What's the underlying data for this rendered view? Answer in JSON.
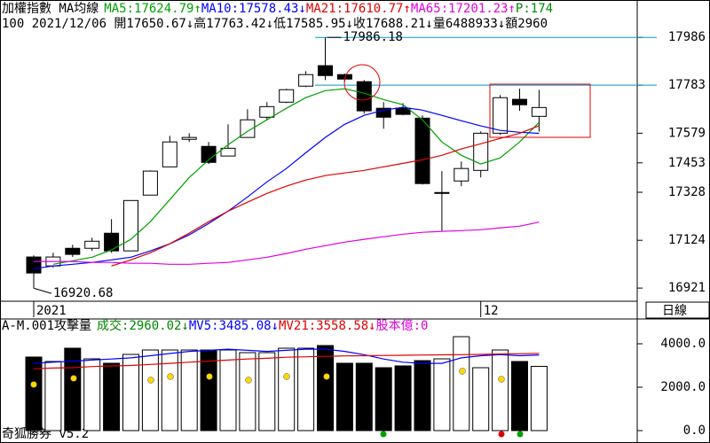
{
  "header": {
    "row1_tail": "P:174",
    "row2": "100 2021/12/06 開17650.67↓高17763.42↓低17585.95↓收17688.21↓量6488933↓額2960",
    "period": "日線",
    "footer": "奇狐勝券 v5.2",
    "capital": "股本億:0"
  },
  "chart_data": [
    {
      "type": "candlestick",
      "title": "加權指數 MA均線",
      "categories": [
        "2021",
        null,
        null,
        null,
        null,
        null,
        null,
        null,
        null,
        null,
        null,
        null,
        null,
        null,
        null,
        null,
        null,
        null,
        null,
        null,
        null,
        null,
        null,
        "12",
        null,
        null,
        null
      ],
      "open": [
        17053,
        17015,
        17090,
        17090,
        17154,
        17079,
        17316,
        17436,
        17553,
        17523,
        17482,
        17561,
        17647,
        17711,
        17779,
        17866,
        17828,
        17798,
        17685,
        17685,
        17643,
        17327,
        17376,
        17421,
        17579,
        17723,
        17650.67
      ],
      "high": [
        17060,
        17071,
        17105,
        17135,
        17214,
        17293,
        17421,
        17568,
        17579,
        17542,
        17617,
        17681,
        17711,
        17768,
        17843,
        17986.18,
        17832,
        17805,
        17711,
        17707,
        17655,
        17418,
        17459,
        17587,
        17741,
        17768,
        17763.42
      ],
      "low": [
        16920.68,
        17008,
        17053,
        17079,
        17071,
        17079,
        17316,
        17436,
        17542,
        17448,
        17482,
        17561,
        17636,
        17707,
        17775,
        17805,
        17798,
        17662,
        17598,
        17655,
        17361,
        17165,
        17354,
        17391,
        17572,
        17674,
        17585.95
      ],
      "close": [
        16985,
        17053,
        17064,
        17120,
        17079,
        17293,
        17418,
        17542,
        17561,
        17455,
        17515,
        17636,
        17692,
        17764,
        17828,
        17824,
        17809,
        17674,
        17647,
        17659,
        17365,
        17327,
        17429,
        17579,
        17730,
        17700,
        17688.21
      ],
      "series": [
        {
          "name": "MA5:17624.79↑",
          "color": "#00a000",
          "values": [
            null,
            17022,
            17037,
            17052,
            17083,
            17128,
            17203,
            17297,
            17391,
            17466,
            17530,
            17587,
            17636,
            17685,
            17730,
            17760,
            17768,
            17749,
            17722,
            17700,
            17636,
            17542,
            17485,
            17448,
            17474,
            17542,
            17624.79
          ]
        },
        {
          "name": "MA10:17578.43↓",
          "color": "#0000ff",
          "values": [
            17003,
            17015,
            17022,
            17030,
            17041,
            17052,
            17079,
            17109,
            17147,
            17195,
            17248,
            17308,
            17372,
            17429,
            17496,
            17561,
            17617,
            17655,
            17677,
            17689,
            17677,
            17655,
            17632,
            17610,
            17591,
            17583,
            17578.43
          ]
        },
        {
          "name": "MA21:17610.77↑",
          "color": "#e00000",
          "values": [
            null,
            null,
            null,
            null,
            17015,
            17041,
            17071,
            17109,
            17154,
            17203,
            17248,
            17286,
            17323,
            17354,
            17380,
            17399,
            17410,
            17421,
            17436,
            17451,
            17466,
            17485,
            17512,
            17534,
            17557,
            17579,
            17610.77
          ]
        },
        {
          "name": "MA65:17201.23↑",
          "color": "#e000e0",
          "values": [
            17034,
            17034,
            17034,
            17030,
            17030,
            17026,
            17026,
            17022,
            17022,
            17026,
            17030,
            17041,
            17052,
            17068,
            17086,
            17101,
            17116,
            17128,
            17139,
            17150,
            17158,
            17162,
            17165,
            17169,
            17177,
            17184,
            17201.23
          ]
        }
      ],
      "hlines": [
        17986,
        17783
      ],
      "hline_color": "#0099cc",
      "ylim": [
        16865,
        18130
      ],
      "yticks": [
        17986,
        17783,
        17579,
        17453,
        17328,
        17124,
        16921
      ]
    },
    {
      "type": "volume",
      "title": "A-M.001攻擊量",
      "series": [
        {
          "name": "成交:2960.02↓",
          "type": "bar",
          "color": "#008800",
          "values": [
            3388,
            3184,
            3796,
            3306,
            3102,
            3510,
            3714,
            3714,
            3714,
            3714,
            3714,
            3592,
            3592,
            3796,
            3796,
            3918,
            3102,
            3102,
            2898,
            2980,
            3224,
            3306,
            4327,
            2898,
            3714,
            3184,
            2960.02
          ]
        },
        {
          "name": "MV5:3485.08↓",
          "type": "line",
          "color": "#0000ff",
          "values": [
            3100,
            3150,
            3200,
            3250,
            3300,
            3350,
            3450,
            3550,
            3650,
            3700,
            3750,
            3700,
            3650,
            3700,
            3750,
            3750,
            3650,
            3500,
            3300,
            3150,
            3100,
            3100,
            3350,
            3450,
            3500,
            3450,
            3485.08
          ]
        },
        {
          "name": "MV21:3558.58↓",
          "type": "line",
          "color": "#e00000",
          "values": [
            2850,
            2880,
            2900,
            2950,
            2980,
            3000,
            3050,
            3100,
            3150,
            3200,
            3250,
            3300,
            3330,
            3380,
            3400,
            3420,
            3440,
            3450,
            3460,
            3470,
            3480,
            3490,
            3500,
            3510,
            3530,
            3540,
            3558.58
          ]
        }
      ],
      "ylim": [
        0,
        4490
      ],
      "yticks": [
        {
          "value": 4000,
          "label": "4000.0"
        },
        {
          "value": 2000,
          "label": "2000.0"
        },
        {
          "value": 0,
          "label": "0.0"
        }
      ]
    }
  ]
}
